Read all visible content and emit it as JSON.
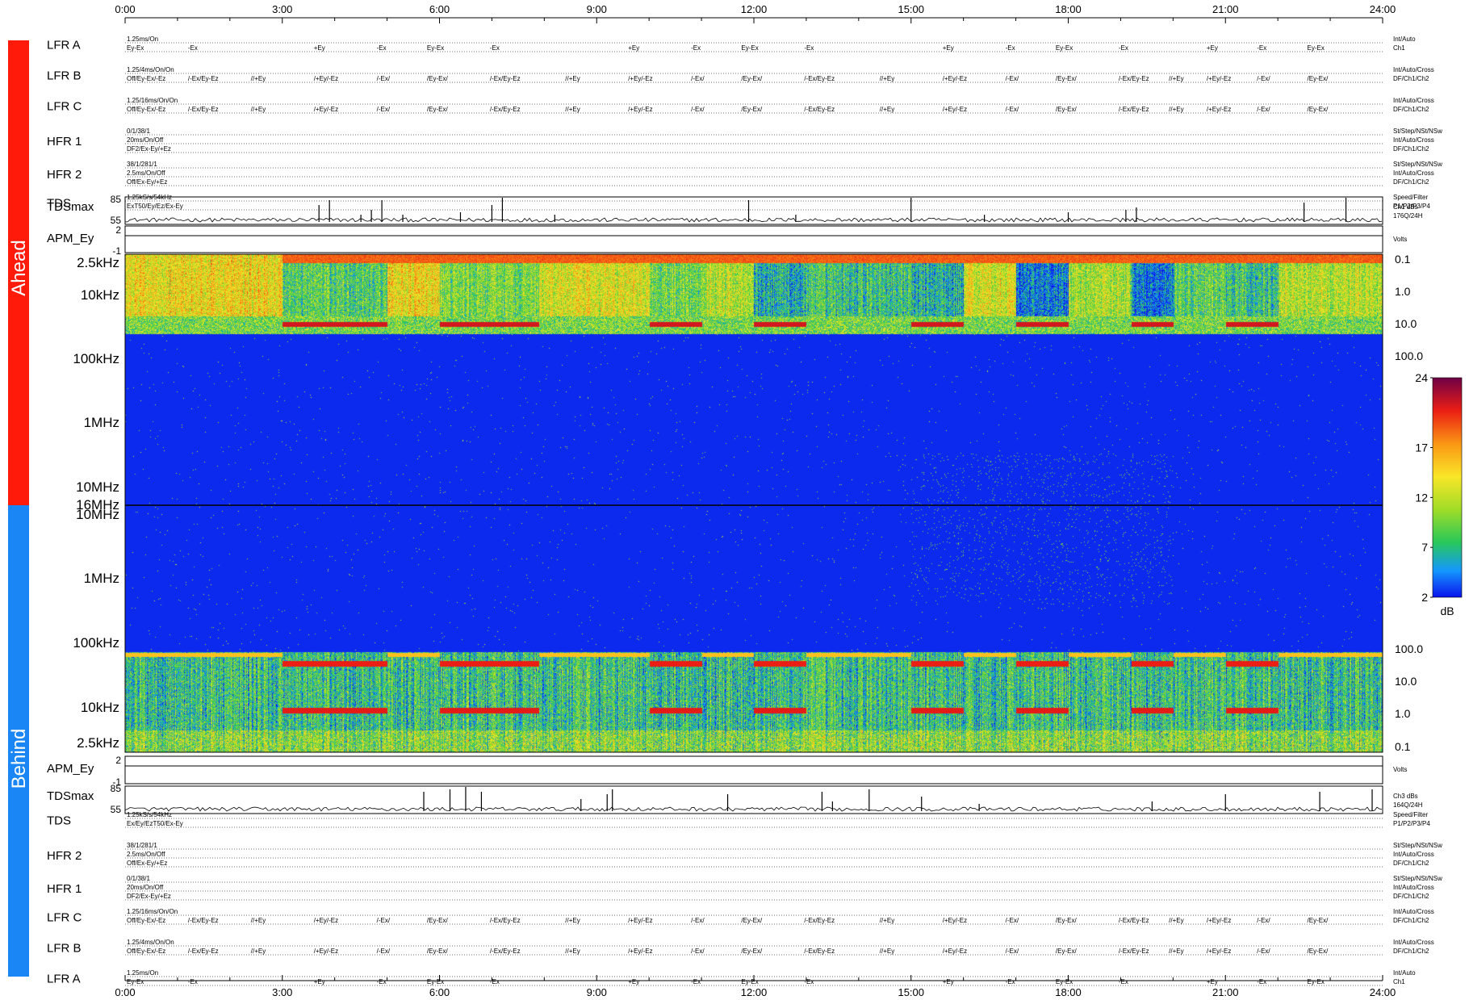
{
  "chart_data": {
    "type": "heatmap",
    "title": "",
    "time_ticks": [
      "0:00",
      "3:00",
      "6:00",
      "9:00",
      "12:00",
      "15:00",
      "18:00",
      "21:00",
      "24:00"
    ],
    "side_labels": {
      "ahead": "Ahead",
      "behind": "Behind"
    },
    "colors": {
      "ahead": "#ff1a0a",
      "behind": "#1a86f5"
    },
    "freq_labels_top": [
      "2.5kHz",
      "10kHz",
      "100kHz",
      "1MHz",
      "10MHz"
    ],
    "freq_label_mid": "16MHz",
    "freq_labels_bottom": [
      "10MHz",
      "1MHz",
      "100kHz",
      "10kHz",
      "2.5kHz"
    ],
    "right_scale_top": [
      "0.1",
      "1.0",
      "10.0",
      "100.0"
    ],
    "right_scale_bottom": [
      "100.0",
      "10.0",
      "1.0",
      "0.1"
    ],
    "colorbar": {
      "label": "dB",
      "ticks": [
        "24",
        "17",
        "12",
        "7",
        "2"
      ],
      "range": [
        2,
        24
      ]
    },
    "tdsmax": {
      "ticks": [
        "85",
        "55"
      ]
    },
    "apm": {
      "ticks": [
        "2",
        "-1"
      ]
    },
    "mode_switch_hours": [
      3,
      5,
      6,
      7.9,
      10,
      11,
      12,
      13,
      15,
      16,
      17,
      18,
      19.2,
      20,
      21,
      22
    ]
  },
  "top_panel": {
    "rows": [
      {
        "label": "LFR A",
        "lines": [
          "1.25ms/On",
          "Ey-Ex"
        ],
        "right": [
          "Int/Auto",
          "Ch1"
        ],
        "seq": [
          [
            5,
            "-Ex"
          ],
          [
            15,
            "+Ey"
          ],
          [
            20,
            "-Ex"
          ],
          [
            24,
            "Ey-Ex"
          ],
          [
            29,
            "-Ex"
          ],
          [
            40,
            "+Ey"
          ],
          [
            45,
            "-Ex"
          ],
          [
            49,
            "Ey-Ex"
          ],
          [
            54,
            "-Ex"
          ],
          [
            65,
            "+Ey"
          ],
          [
            70,
            "-Ex"
          ],
          [
            74,
            "Ey-Ex"
          ],
          [
            79,
            "-Ex"
          ],
          [
            86,
            "+Ey"
          ],
          [
            90,
            "-Ex"
          ],
          [
            94,
            "Ey-Ex"
          ]
        ]
      },
      {
        "label": "LFR B",
        "lines": [
          "1.25/4ms/On/On",
          "Off/Ey-Ex/-Ez"
        ],
        "right": [
          "Int/Auto/Cross",
          "DF/Ch1/Ch2"
        ],
        "seq": [
          [
            5,
            "/-Ex/Ey-Ez"
          ],
          [
            10,
            "//+Ey"
          ],
          [
            15,
            "/+Ey/-Ez"
          ],
          [
            20,
            "/-Ex/"
          ],
          [
            24,
            "/Ey-Ex/"
          ],
          [
            29,
            "/-Ex/Ey-Ez"
          ],
          [
            35,
            "//+Ey"
          ],
          [
            40,
            "/+Ey/-Ez"
          ],
          [
            45,
            "/-Ex/"
          ],
          [
            49,
            "/Ey-Ex/"
          ],
          [
            54,
            "/-Ex/Ey-Ez"
          ],
          [
            60,
            "//+Ey"
          ],
          [
            65,
            "/+Ey/-Ez"
          ],
          [
            70,
            "/-Ex/"
          ],
          [
            74,
            "/Ey-Ex/"
          ],
          [
            79,
            "/-Ex/Ey-Ez"
          ],
          [
            83,
            "//+Ey"
          ],
          [
            86,
            "/+Ey/-Ez"
          ],
          [
            90,
            "/-Ex/"
          ],
          [
            94,
            "/Ey-Ex/"
          ]
        ]
      },
      {
        "label": "LFR C",
        "lines": [
          "1.25/16ms/On/On",
          "Off/Ey-Ex/-Ez"
        ],
        "right": [
          "Int/Auto/Cross",
          "DF/Ch1/Ch2"
        ],
        "seq": [
          [
            5,
            "/-Ex/Ey-Ez"
          ],
          [
            10,
            "//+Ey"
          ],
          [
            15,
            "/+Ey/-Ez"
          ],
          [
            20,
            "/-Ex/"
          ],
          [
            24,
            "/Ey-Ex/"
          ],
          [
            29,
            "/-Ex/Ey-Ez"
          ],
          [
            35,
            "//+Ey"
          ],
          [
            40,
            "/+Ey/-Ez"
          ],
          [
            45,
            "/-Ex/"
          ],
          [
            49,
            "/Ey-Ex/"
          ],
          [
            54,
            "/-Ex/Ey-Ez"
          ],
          [
            60,
            "//+Ey"
          ],
          [
            65,
            "/+Ey/-Ez"
          ],
          [
            70,
            "/-Ex/"
          ],
          [
            74,
            "/Ey-Ex/"
          ],
          [
            79,
            "/-Ex/Ey-Ez"
          ],
          [
            83,
            "//+Ey"
          ],
          [
            86,
            "/+Ey/-Ez"
          ],
          [
            90,
            "/-Ex/"
          ],
          [
            94,
            "/Ey-Ex/"
          ]
        ]
      },
      {
        "label": "HFR 1",
        "lines": [
          "0/1/38/1",
          "20ms/On/Off",
          "DF2/Ex-Ey/+Ez"
        ],
        "right": [
          "St/Step/NSt/NSw",
          "Int/Auto/Cross",
          "DF/Ch1/Ch2"
        ],
        "seq": []
      },
      {
        "label": "HFR 2",
        "lines": [
          "38/1/281/1",
          "2.5ms/On/Off",
          "Off/Ex-Ey/+Ez"
        ],
        "right": [
          "St/Step/NSt/NSw",
          "Int/Auto/Cross",
          "DF/Ch1/Ch2"
        ],
        "seq": []
      },
      {
        "label": "TDS",
        "lines": [
          "1.25kS/s/54kHz",
          "ExT50/Ey/Ez/Ex-Ey"
        ],
        "right": [
          "Speed/Filter",
          "P1/P2/P3/P4"
        ],
        "seq": []
      }
    ],
    "tdsmax": {
      "label": "TDSmax",
      "right": [
        "Ch1 dBs",
        "176Q/24H"
      ]
    },
    "apm": {
      "label": "APM_Ey",
      "right": [
        "Volts"
      ]
    }
  },
  "bottom_panel": {
    "apm": {
      "label": "APM_Ey",
      "right": [
        "Volts"
      ]
    },
    "tdsmax": {
      "label": "TDSmax",
      "right": [
        "Ch3 dBs",
        "164Q/24H"
      ]
    },
    "rows": [
      {
        "label": "TDS",
        "lines": [
          "1.25kS/s/54kHz",
          "Ex/Ey/EzT50/Ex-Ey"
        ],
        "right": [
          "Speed/Filter",
          "P1/P2/P3/P4"
        ],
        "seq": []
      },
      {
        "label": "HFR 2",
        "lines": [
          "38/1/281/1",
          "2.5ms/On/Off",
          "Off/Ex-Ey/+Ez"
        ],
        "right": [
          "St/Step/NSt/NSw",
          "Int/Auto/Cross",
          "DF/Ch1/Ch2"
        ],
        "seq": []
      },
      {
        "label": "HFR 1",
        "lines": [
          "0/1/38/1",
          "20ms/On/Off",
          "DF2/Ex-Ey/+Ez"
        ],
        "right": [
          "St/Step/NSt/NSw",
          "Int/Auto/Cross",
          "DF/Ch1/Ch2"
        ],
        "seq": []
      },
      {
        "label": "LFR C",
        "lines": [
          "1.25/16ms/On/On",
          "Off/Ey-Ex/-Ez"
        ],
        "right": [
          "Int/Auto/Cross",
          "DF/Ch1/Ch2"
        ],
        "seq": [
          [
            5,
            "/-Ex/Ey-Ez"
          ],
          [
            10,
            "//+Ey"
          ],
          [
            15,
            "/+Ey/-Ez"
          ],
          [
            20,
            "/-Ex/"
          ],
          [
            24,
            "/Ey-Ex/"
          ],
          [
            29,
            "/-Ex/Ey-Ez"
          ],
          [
            35,
            "//+Ey"
          ],
          [
            40,
            "/+Ey/-Ez"
          ],
          [
            45,
            "/-Ex/"
          ],
          [
            49,
            "/Ey-Ex/"
          ],
          [
            54,
            "/-Ex/Ey-Ez"
          ],
          [
            60,
            "//+Ey"
          ],
          [
            65,
            "/+Ey/-Ez"
          ],
          [
            70,
            "/-Ex/"
          ],
          [
            74,
            "/Ey-Ex/"
          ],
          [
            79,
            "/-Ex/Ey-Ez"
          ],
          [
            83,
            "//+Ey"
          ],
          [
            86,
            "/+Ey/-Ez"
          ],
          [
            90,
            "/-Ex/"
          ],
          [
            94,
            "/Ey-Ex/"
          ]
        ]
      },
      {
        "label": "LFR B",
        "lines": [
          "1.25/4ms/On/On",
          "Off/Ey-Ex/-Ez"
        ],
        "right": [
          "Int/Auto/Cross",
          "DF/Ch1/Ch2"
        ],
        "seq": [
          [
            5,
            "/-Ex/Ey-Ez"
          ],
          [
            10,
            "//+Ey"
          ],
          [
            15,
            "/+Ey/-Ez"
          ],
          [
            20,
            "/-Ex/"
          ],
          [
            24,
            "/Ey-Ex/"
          ],
          [
            29,
            "/-Ex/Ey-Ez"
          ],
          [
            35,
            "//+Ey"
          ],
          [
            40,
            "/+Ey/-Ez"
          ],
          [
            45,
            "/-Ex/"
          ],
          [
            49,
            "/Ey-Ex/"
          ],
          [
            54,
            "/-Ex/Ey-Ez"
          ],
          [
            60,
            "//+Ey"
          ],
          [
            65,
            "/+Ey/-Ez"
          ],
          [
            70,
            "/-Ex/"
          ],
          [
            74,
            "/Ey-Ex/"
          ],
          [
            79,
            "/-Ex/Ey-Ez"
          ],
          [
            83,
            "//+Ey"
          ],
          [
            86,
            "/+Ey/-Ez"
          ],
          [
            90,
            "/-Ex/"
          ],
          [
            94,
            "/Ey-Ex/"
          ]
        ]
      },
      {
        "label": "LFR A",
        "lines": [
          "1.25ms/On",
          "Ey-Ex"
        ],
        "right": [
          "Int/Auto",
          "Ch1"
        ],
        "seq": [
          [
            5,
            "-Ex"
          ],
          [
            15,
            "+Ey"
          ],
          [
            20,
            "-Ex"
          ],
          [
            24,
            "Ey-Ex"
          ],
          [
            29,
            "-Ex"
          ],
          [
            40,
            "+Ey"
          ],
          [
            45,
            "-Ex"
          ],
          [
            49,
            "Ey-Ex"
          ],
          [
            54,
            "-Ex"
          ],
          [
            65,
            "+Ey"
          ],
          [
            70,
            "-Ex"
          ],
          [
            74,
            "Ey-Ex"
          ],
          [
            79,
            "-Ex"
          ],
          [
            86,
            "+Ey"
          ],
          [
            90,
            "-Ex"
          ],
          [
            94,
            "Ey-Ex"
          ]
        ]
      }
    ]
  }
}
